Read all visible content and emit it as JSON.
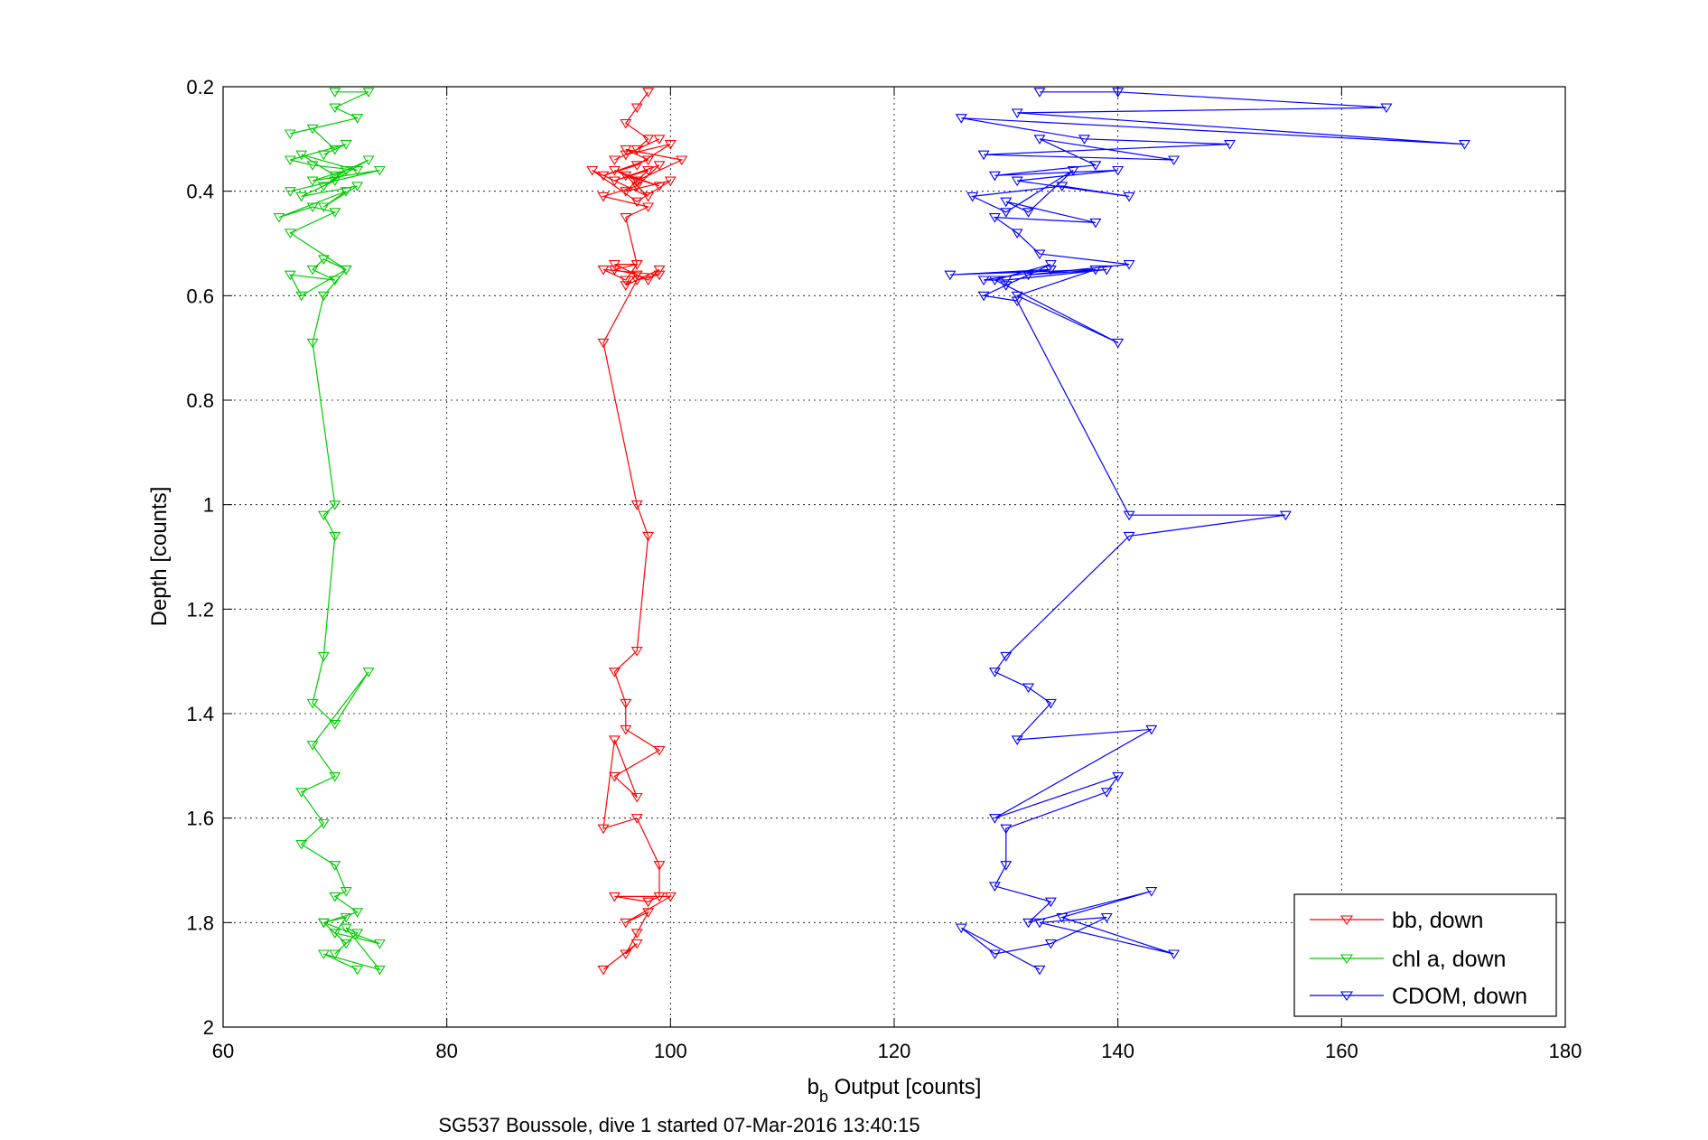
{
  "chart_data": {
    "type": "line",
    "xlabel_main": "b",
    "xlabel_sub": "b",
    "xlabel_rest": " Output [counts]",
    "ylabel": "Depth [counts]",
    "caption": "SG537 Boussole, dive 1 started 07-Mar-2016 13:40:15",
    "xlim": [
      60,
      180
    ],
    "ylim": [
      0.2,
      2
    ],
    "y_reversed": true,
    "grid": true,
    "legend_position": "bottom-right",
    "xticks": [
      "60",
      "80",
      "100",
      "120",
      "140",
      "160",
      "180"
    ],
    "yticks": [
      "0.2",
      "0.4",
      "0.6",
      "0.8",
      "1",
      "1.2",
      "1.4",
      "1.6",
      "1.8",
      "2"
    ],
    "marker": "triangle-down",
    "series": [
      {
        "name": "bb, down",
        "color": "#ff0000",
        "x": [
          98,
          97,
          96,
          98,
          97,
          95,
          99,
          96,
          100,
          97,
          94,
          98,
          96,
          101,
          97,
          95,
          99,
          96,
          98,
          93,
          97,
          100,
          96,
          98,
          95,
          99,
          97,
          94,
          98,
          96,
          97,
          95,
          97,
          96,
          99,
          98,
          95,
          97,
          96,
          94,
          99,
          97,
          94,
          97,
          98,
          97,
          95,
          96,
          96,
          99,
          95,
          97,
          95,
          94,
          97,
          99,
          99,
          98,
          95,
          100,
          96,
          98,
          97,
          96,
          97,
          94
        ],
        "y": [
          0.21,
          0.24,
          0.27,
          0.3,
          0.32,
          0.34,
          0.3,
          0.33,
          0.31,
          0.35,
          0.37,
          0.34,
          0.32,
          0.34,
          0.38,
          0.36,
          0.39,
          0.37,
          0.41,
          0.36,
          0.42,
          0.38,
          0.4,
          0.36,
          0.38,
          0.35,
          0.39,
          0.41,
          0.43,
          0.45,
          0.54,
          0.55,
          0.56,
          0.58,
          0.55,
          0.57,
          0.54,
          0.54,
          0.57,
          0.55,
          0.56,
          0.57,
          0.69,
          1.0,
          1.06,
          1.28,
          1.32,
          1.38,
          1.43,
          1.47,
          1.52,
          1.56,
          1.45,
          1.62,
          1.6,
          1.69,
          1.75,
          1.76,
          1.75,
          1.75,
          1.8,
          1.78,
          1.82,
          1.86,
          1.84,
          1.89
        ]
      },
      {
        "name": "chl a, down",
        "color": "#00cc00",
        "x": [
          70,
          73,
          70,
          72,
          66,
          68,
          70,
          69,
          71,
          66,
          68,
          72,
          67,
          70,
          73,
          69,
          71,
          68,
          74,
          66,
          70,
          67,
          72,
          69,
          71,
          65,
          68,
          70,
          66,
          71,
          69,
          68,
          70,
          66,
          67,
          71,
          69,
          68,
          70,
          69,
          70,
          69,
          68,
          70,
          73,
          68,
          70,
          67,
          69,
          67,
          70,
          71,
          70,
          72,
          69,
          71,
          70,
          74,
          69,
          71,
          70,
          72,
          71,
          74,
          69,
          72
        ],
        "y": [
          0.21,
          0.21,
          0.24,
          0.26,
          0.29,
          0.28,
          0.32,
          0.33,
          0.31,
          0.34,
          0.35,
          0.36,
          0.33,
          0.37,
          0.34,
          0.39,
          0.36,
          0.38,
          0.36,
          0.4,
          0.38,
          0.41,
          0.39,
          0.43,
          0.4,
          0.45,
          0.43,
          0.44,
          0.48,
          0.55,
          0.53,
          0.55,
          0.57,
          0.56,
          0.6,
          0.55,
          0.6,
          0.69,
          1.0,
          1.02,
          1.06,
          1.29,
          1.38,
          1.42,
          1.32,
          1.46,
          1.52,
          1.55,
          1.61,
          1.65,
          1.69,
          1.74,
          1.75,
          1.78,
          1.8,
          1.79,
          1.82,
          1.84,
          1.8,
          1.84,
          1.86,
          1.82,
          1.81,
          1.89,
          1.86,
          1.89
        ]
      },
      {
        "name": "CDOM, down",
        "color": "#0000ff",
        "x": [
          133,
          140,
          164,
          131,
          171,
          126,
          137,
          150,
          128,
          145,
          133,
          138,
          129,
          140,
          131,
          141,
          135,
          127,
          130,
          136,
          132,
          130,
          138,
          129,
          131,
          133,
          141,
          132,
          139,
          130,
          128,
          134,
          125,
          138,
          131,
          140,
          130,
          129,
          134,
          128,
          131,
          141,
          155,
          141,
          130,
          129,
          132,
          134,
          131,
          143,
          129,
          140,
          139,
          130,
          130,
          129,
          134,
          132,
          143,
          135,
          145,
          133,
          139,
          134,
          129,
          126,
          133
        ],
        "y": [
          0.21,
          0.21,
          0.24,
          0.25,
          0.31,
          0.26,
          0.3,
          0.31,
          0.33,
          0.34,
          0.3,
          0.35,
          0.37,
          0.36,
          0.38,
          0.41,
          0.39,
          0.41,
          0.44,
          0.36,
          0.44,
          0.42,
          0.46,
          0.45,
          0.48,
          0.52,
          0.54,
          0.56,
          0.55,
          0.57,
          0.57,
          0.55,
          0.56,
          0.55,
          0.6,
          0.69,
          0.58,
          0.57,
          0.54,
          0.6,
          0.61,
          1.02,
          1.02,
          1.06,
          1.29,
          1.32,
          1.35,
          1.38,
          1.45,
          1.43,
          1.6,
          1.52,
          1.55,
          1.62,
          1.69,
          1.73,
          1.76,
          1.8,
          1.74,
          1.79,
          1.86,
          1.8,
          1.79,
          1.84,
          1.86,
          1.81,
          1.89
        ]
      }
    ]
  }
}
